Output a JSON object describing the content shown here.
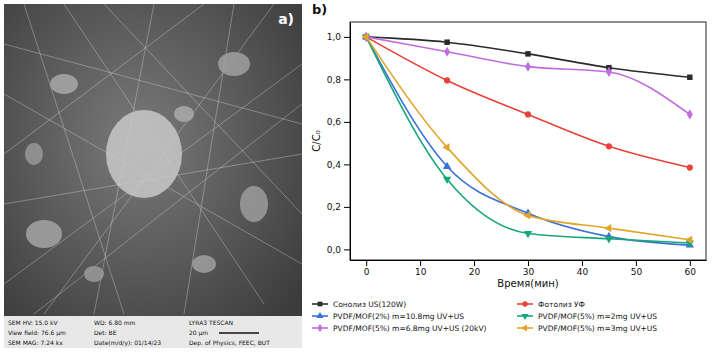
{
  "chart_data": {
    "type": "line",
    "annotations": [
      "b)"
    ],
    "x_label": "Время(мин)",
    "y_label": "C/C₀",
    "x": [
      0,
      15,
      30,
      45,
      60
    ],
    "series": [
      {
        "name": "Сонолиз US(120W)",
        "color": "#2a2a2a",
        "marker": "square",
        "line_style": "solid",
        "values": [
          1.0,
          0.975,
          0.92,
          0.855,
          0.81
        ]
      },
      {
        "name": "Фотолиз УФ",
        "color": "#e8423a",
        "marker": "circle",
        "line_style": "solid",
        "values": [
          1.0,
          0.795,
          0.635,
          0.485,
          0.385
        ]
      },
      {
        "name": "PVDF/MOF(2%) m=10.8mg  UV+US",
        "color": "#3a6fd8",
        "marker": "triangle-up",
        "line_style": "solid",
        "values": [
          1.0,
          0.39,
          0.17,
          0.06,
          0.02
        ]
      },
      {
        "name": "PVDF/MOF(5%) m=2mg  UV+US",
        "color": "#18a878",
        "marker": "triangle-down",
        "line_style": "solid",
        "values": [
          1.0,
          0.33,
          0.075,
          0.05,
          0.03
        ]
      },
      {
        "name": "PVDF/MOF(5%) m=6.8mg  UV+US (20kV)",
        "color": "#c06ce0",
        "marker": "diamond",
        "line_style": "solid",
        "values": [
          1.0,
          0.93,
          0.86,
          0.835,
          0.635
        ]
      },
      {
        "name": "PVDF/MOF(5%) m=3mg  UV+US",
        "color": "#e0a52a",
        "marker": "triangle-left",
        "line_style": "solid",
        "values": [
          1.0,
          0.48,
          0.16,
          0.1,
          0.045
        ]
      }
    ],
    "xlim": [
      -3,
      63
    ],
    "xticks": [
      0,
      10,
      20,
      30,
      40,
      50,
      60
    ],
    "ylim": [
      -0.05,
      1.07
    ],
    "yticks": [
      {
        "value": 0,
        "label": "0,0"
      },
      {
        "value": 0.2,
        "label": "0,2"
      },
      {
        "value": 0.4,
        "label": "0,4"
      },
      {
        "value": 0.6,
        "label": "0,6"
      },
      {
        "value": 0.8,
        "label": "0,8"
      },
      {
        "value": 1.0,
        "label": "1,0"
      }
    ],
    "grid": false,
    "legend": "bottom"
  },
  "image_panel": {
    "label": "a)",
    "info_bar": {
      "rows": [
        [
          "SEM HV: 15.0 kV",
          "WD: 6.80 mm",
          "LYRA3 TESCAN"
        ],
        [
          "View field: 76.6 μm",
          "Det: BE",
          "20 μm"
        ],
        [
          "SEM MAG: 7.24 kx",
          "Date(m/d/y): 01/14/23",
          "Dep. of Physics, FEEC, BUT"
        ]
      ]
    }
  }
}
